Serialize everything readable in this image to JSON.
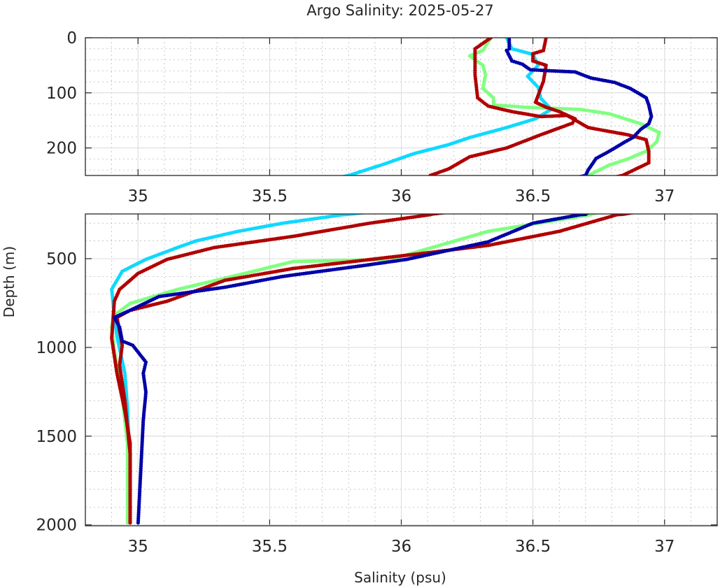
{
  "chart_data": {
    "type": "scatter",
    "title": "Argo Salinity: 2025-05-27",
    "xlabel": "Salinity (psu)",
    "ylabel": "Depth (m)",
    "xlim": [
      34.8,
      37.2
    ],
    "xticks": [
      35,
      35.5,
      36,
      36.5,
      37
    ],
    "xtick_labels": [
      "35",
      "35.5",
      "36",
      "36.5",
      "37"
    ],
    "grid": true,
    "panels": [
      {
        "name": "top",
        "ylim": [
          0,
          250
        ],
        "yticks": [
          0,
          100,
          200
        ],
        "ytick_labels": [
          "0",
          "100",
          "200"
        ],
        "yminor": 20
      },
      {
        "name": "bottom",
        "ylim": [
          248,
          2005
        ],
        "yticks": [
          500,
          1000,
          1500,
          2000
        ],
        "ytick_labels": [
          "500",
          "1000",
          "1500",
          "2000"
        ],
        "yminor": 100
      }
    ],
    "series": [
      {
        "name": "float-cyan",
        "color": "#10d8ff",
        "points": [
          [
            0,
            36.4
          ],
          [
            20,
            36.42
          ],
          [
            30,
            36.5
          ],
          [
            50,
            36.52
          ],
          [
            70,
            36.48
          ],
          [
            90,
            36.52
          ],
          [
            110,
            36.53
          ],
          [
            130,
            36.57
          ],
          [
            147,
            36.51
          ],
          [
            163,
            36.4
          ],
          [
            181,
            36.26
          ],
          [
            194,
            36.18
          ],
          [
            210,
            36.05
          ],
          [
            230,
            35.93
          ],
          [
            250,
            35.8
          ],
          [
            252,
            35.78
          ],
          [
            300,
            35.55
          ],
          [
            346,
            35.38
          ],
          [
            400,
            35.22
          ],
          [
            437,
            35.15
          ],
          [
            504,
            35.03
          ],
          [
            571,
            34.94
          ],
          [
            673,
            34.9
          ],
          [
            819,
            34.91
          ],
          [
            937,
            34.92
          ],
          [
            1146,
            34.95
          ],
          [
            1343,
            34.96
          ],
          [
            1700,
            34.97
          ]
        ]
      },
      {
        "name": "float-green",
        "color": "#80ff80",
        "points": [
          [
            0,
            36.34
          ],
          [
            23,
            36.31
          ],
          [
            33,
            36.26
          ],
          [
            50,
            36.31
          ],
          [
            67,
            36.32
          ],
          [
            92,
            36.31
          ],
          [
            109,
            36.35
          ],
          [
            122,
            36.35
          ],
          [
            126,
            36.47
          ],
          [
            130,
            36.68
          ],
          [
            138,
            36.79
          ],
          [
            156,
            36.91
          ],
          [
            172,
            36.98
          ],
          [
            189,
            36.97
          ],
          [
            206,
            36.93
          ],
          [
            220,
            36.86
          ],
          [
            231,
            36.79
          ],
          [
            250,
            36.71
          ],
          [
            252,
            36.72
          ],
          [
            346,
            36.33
          ],
          [
            504,
            35.96
          ],
          [
            516,
            35.59
          ],
          [
            610,
            35.33
          ],
          [
            673,
            35.15
          ],
          [
            752,
            34.97
          ],
          [
            819,
            34.91
          ],
          [
            886,
            34.9
          ],
          [
            1016,
            34.91
          ],
          [
            1280,
            34.94
          ],
          [
            1539,
            34.96
          ],
          [
            2000,
            34.96
          ]
        ]
      },
      {
        "name": "float-red-a",
        "color": "#b00000",
        "points": [
          [
            0,
            36.34
          ],
          [
            20,
            36.28
          ],
          [
            67,
            36.28
          ],
          [
            109,
            36.29
          ],
          [
            124,
            36.33
          ],
          [
            134,
            36.42
          ],
          [
            143,
            36.53
          ],
          [
            141,
            36.63
          ],
          [
            163,
            36.71
          ],
          [
            170,
            36.79
          ],
          [
            176,
            36.86
          ],
          [
            185,
            36.93
          ],
          [
            206,
            36.94
          ],
          [
            227,
            36.94
          ],
          [
            250,
            36.84
          ],
          [
            252,
            36.82
          ],
          [
            346,
            36.6
          ],
          [
            425,
            36.33
          ],
          [
            472,
            36.07
          ],
          [
            555,
            35.59
          ],
          [
            622,
            35.33
          ],
          [
            740,
            35.11
          ],
          [
            791,
            34.97
          ],
          [
            831,
            34.92
          ],
          [
            909,
            34.93
          ],
          [
            988,
            34.94
          ],
          [
            1100,
            34.93
          ],
          [
            1300,
            34.95
          ],
          [
            1600,
            34.97
          ],
          [
            2000,
            34.97
          ]
        ]
      },
      {
        "name": "float-red-b",
        "color": "#b00000",
        "points": [
          [
            0,
            36.55
          ],
          [
            23,
            36.54
          ],
          [
            29,
            36.5
          ],
          [
            42,
            36.5
          ],
          [
            50,
            36.55
          ],
          [
            79,
            36.54
          ],
          [
            117,
            36.51
          ],
          [
            126,
            36.55
          ],
          [
            134,
            36.6
          ],
          [
            147,
            36.66
          ],
          [
            155,
            36.65
          ],
          [
            176,
            36.53
          ],
          [
            200,
            36.4
          ],
          [
            216,
            36.26
          ],
          [
            238,
            36.18
          ],
          [
            250,
            36.11
          ],
          [
            252,
            36.11
          ],
          [
            300,
            35.88
          ],
          [
            374,
            35.59
          ],
          [
            437,
            35.29
          ],
          [
            504,
            35.11
          ],
          [
            583,
            35.0
          ],
          [
            673,
            34.93
          ],
          [
            740,
            34.91
          ],
          [
            949,
            34.9
          ],
          [
            1146,
            34.92
          ],
          [
            1358,
            34.95
          ],
          [
            1539,
            34.97
          ],
          [
            2000,
            34.97
          ]
        ]
      },
      {
        "name": "float-blue",
        "color": "#0000a8",
        "points": [
          [
            0,
            36.41
          ],
          [
            20,
            36.41
          ],
          [
            23,
            36.4
          ],
          [
            42,
            36.42
          ],
          [
            48,
            36.46
          ],
          [
            58,
            36.49
          ],
          [
            60,
            36.57
          ],
          [
            62,
            36.66
          ],
          [
            73,
            36.72
          ],
          [
            81,
            36.81
          ],
          [
            92,
            36.87
          ],
          [
            109,
            36.93
          ],
          [
            122,
            36.94
          ],
          [
            143,
            36.95
          ],
          [
            156,
            36.94
          ],
          [
            166,
            36.91
          ],
          [
            181,
            36.88
          ],
          [
            189,
            36.85
          ],
          [
            206,
            36.79
          ],
          [
            219,
            36.74
          ],
          [
            240,
            36.71
          ],
          [
            250,
            36.7
          ],
          [
            252,
            36.68
          ],
          [
            300,
            36.5
          ],
          [
            405,
            36.33
          ],
          [
            504,
            36.02
          ],
          [
            540,
            35.85
          ],
          [
            600,
            35.55
          ],
          [
            661,
            35.33
          ],
          [
            713,
            35.08
          ],
          [
            791,
            34.97
          ],
          [
            831,
            34.91
          ],
          [
            886,
            34.93
          ],
          [
            964,
            34.94
          ],
          [
            988,
            34.98
          ],
          [
            1083,
            35.03
          ],
          [
            1146,
            35.02
          ],
          [
            1252,
            35.03
          ],
          [
            1409,
            35.02
          ],
          [
            2000,
            35.0
          ]
        ]
      }
    ]
  }
}
